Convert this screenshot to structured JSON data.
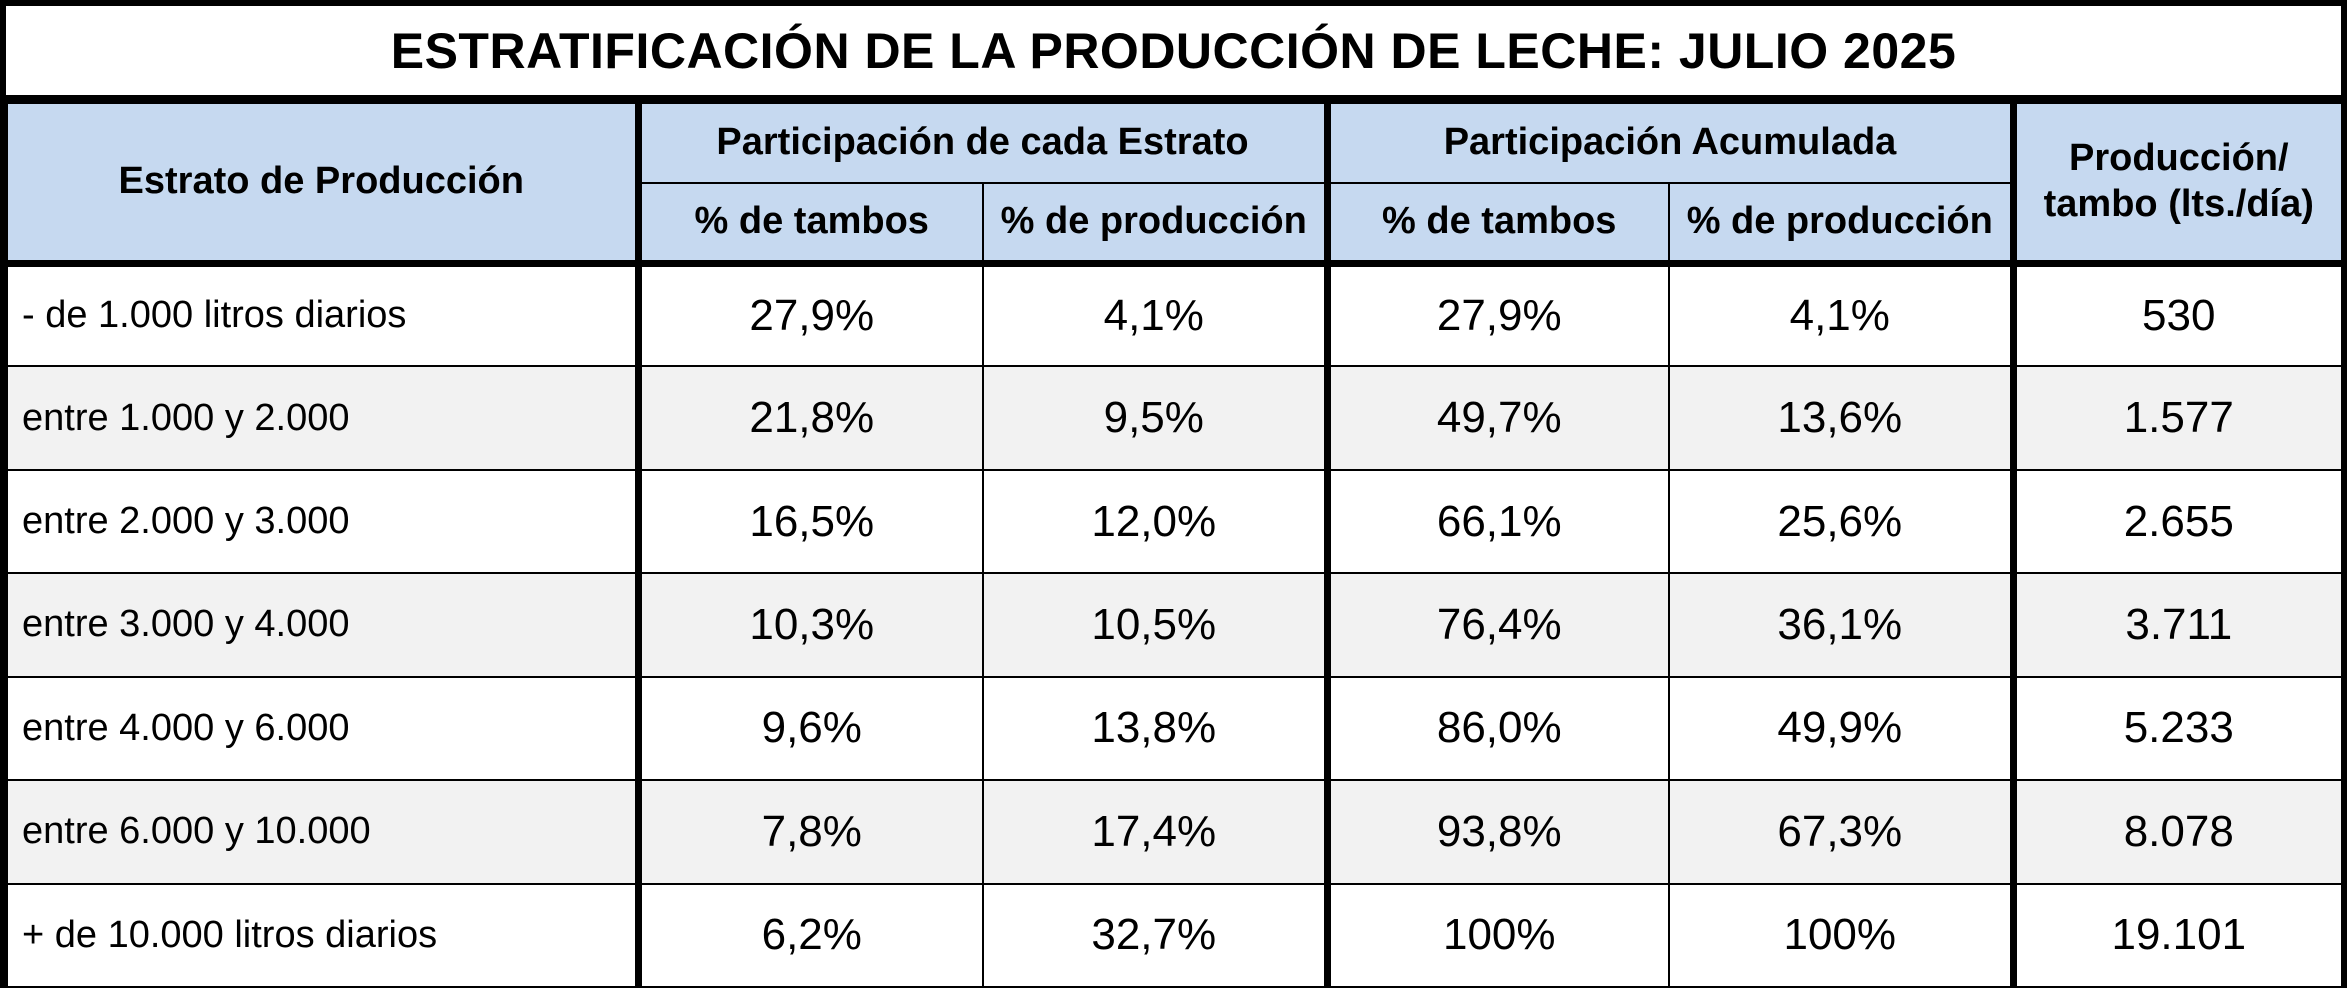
{
  "title": "ESTRATIFICACIÓN DE LA PRODUCCIÓN DE LECHE: JULIO 2025",
  "headers": {
    "estrato": "Estrato de Producción",
    "group_participacion": "Participación de cada Estrato",
    "group_acumulada": "Participación Acumulada",
    "produccion_line1": "Producción/",
    "produccion_line2": "tambo (lts./día)",
    "pct_tambos": "% de tambos",
    "pct_produccion": "% de producción"
  },
  "rows": [
    {
      "estrato": "- de 1.000 litros diarios",
      "part_tambos": "27,9%",
      "part_produccion": "4,1%",
      "acum_tambos": "27,9%",
      "acum_produccion": "4,1%",
      "produccion_tambo": "530"
    },
    {
      "estrato": "entre 1.000 y 2.000",
      "part_tambos": "21,8%",
      "part_produccion": "9,5%",
      "acum_tambos": "49,7%",
      "acum_produccion": "13,6%",
      "produccion_tambo": "1.577"
    },
    {
      "estrato": "entre 2.000 y 3.000",
      "part_tambos": "16,5%",
      "part_produccion": "12,0%",
      "acum_tambos": "66,1%",
      "acum_produccion": "25,6%",
      "produccion_tambo": "2.655"
    },
    {
      "estrato": "entre 3.000 y 4.000",
      "part_tambos": "10,3%",
      "part_produccion": "10,5%",
      "acum_tambos": "76,4%",
      "acum_produccion": "36,1%",
      "produccion_tambo": "3.711"
    },
    {
      "estrato": "entre 4.000 y 6.000",
      "part_tambos": "9,6%",
      "part_produccion": "13,8%",
      "acum_tambos": "86,0%",
      "acum_produccion": "49,9%",
      "produccion_tambo": "5.233"
    },
    {
      "estrato": "entre 6.000 y 10.000",
      "part_tambos": "7,8%",
      "part_produccion": "17,4%",
      "acum_tambos": "93,8%",
      "acum_produccion": "67,3%",
      "produccion_tambo": "8.078"
    },
    {
      "estrato": "+ de 10.000 litros diarios",
      "part_tambos": "6,2%",
      "part_produccion": "32,7%",
      "acum_tambos": "100%",
      "acum_produccion": "100%",
      "produccion_tambo": "19.101"
    }
  ],
  "colors": {
    "header_fill": "#c6d9f0",
    "alt_row_fill": "#f2f2f2",
    "border": "#000000"
  }
}
